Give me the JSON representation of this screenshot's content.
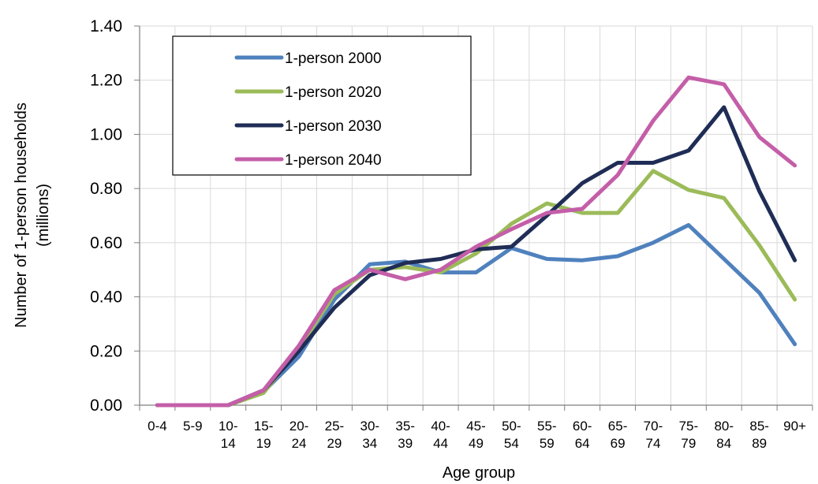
{
  "chart_data": {
    "type": "line",
    "xlabel": "Age group",
    "ylabel_lines": [
      "Number of  1-person households",
      "(millions)"
    ],
    "ylim": [
      0,
      1.4
    ],
    "yticks": [
      "0.00",
      "0.20",
      "0.40",
      "0.60",
      "0.80",
      "1.00",
      "1.20",
      "1.40"
    ],
    "grid": true,
    "legend_position": "top-left",
    "categories": [
      "0-4",
      "5-9",
      "10-14",
      "15-19",
      "20-24",
      "25-29",
      "30-34",
      "35-39",
      "40-44",
      "45-49",
      "50-54",
      "55-59",
      "60-64",
      "65-69",
      "70-74",
      "75-79",
      "80-84",
      "85-89",
      "90+"
    ],
    "category_labels": [
      [
        "0-4",
        ""
      ],
      [
        "5-9",
        ""
      ],
      [
        "10-",
        "14"
      ],
      [
        "15-",
        "19"
      ],
      [
        "20-",
        "24"
      ],
      [
        "25-",
        "29"
      ],
      [
        "30-",
        "34"
      ],
      [
        "35-",
        "39"
      ],
      [
        "40-",
        "44"
      ],
      [
        "45-",
        "49"
      ],
      [
        "50-",
        "54"
      ],
      [
        "55-",
        "59"
      ],
      [
        "60-",
        "64"
      ],
      [
        "65-",
        "69"
      ],
      [
        "70-",
        "74"
      ],
      [
        "75-",
        "79"
      ],
      [
        "80-",
        "84"
      ],
      [
        "85-",
        "89"
      ],
      [
        "90+",
        ""
      ]
    ],
    "series": [
      {
        "name": "1-person 2000",
        "color": "#4f81bd",
        "values": [
          0,
          0,
          0,
          0.05,
          0.18,
          0.39,
          0.52,
          0.53,
          0.49,
          0.49,
          0.58,
          0.54,
          0.535,
          0.55,
          0.6,
          0.665,
          0.54,
          0.415,
          0.225
        ]
      },
      {
        "name": "1-person 2020",
        "color": "#9bbb59",
        "values": [
          0,
          0,
          0,
          0.045,
          0.21,
          0.41,
          0.5,
          0.51,
          0.49,
          0.56,
          0.67,
          0.745,
          0.71,
          0.71,
          0.865,
          0.795,
          0.765,
          0.59,
          0.39
        ]
      },
      {
        "name": "1-person 2030",
        "color": "#1f2d56",
        "values": [
          0,
          0,
          0,
          0.055,
          0.2,
          0.36,
          0.48,
          0.525,
          0.54,
          0.575,
          0.585,
          0.7,
          0.82,
          0.895,
          0.895,
          0.94,
          1.1,
          0.79,
          0.535
        ]
      },
      {
        "name": "1-person 2040",
        "color": "#c45ea8",
        "values": [
          0,
          0,
          0,
          0.055,
          0.22,
          0.425,
          0.5,
          0.465,
          0.5,
          0.585,
          0.65,
          0.71,
          0.725,
          0.85,
          1.05,
          1.21,
          1.185,
          0.99,
          0.885
        ]
      }
    ]
  }
}
